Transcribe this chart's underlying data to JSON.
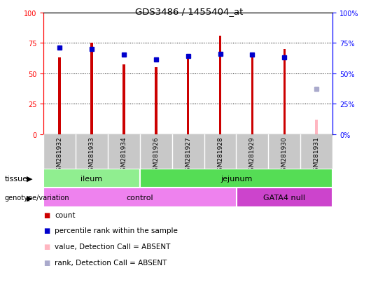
{
  "title": "GDS3486 / 1455404_at",
  "samples": [
    "GSM281932",
    "GSM281933",
    "GSM281934",
    "GSM281926",
    "GSM281927",
    "GSM281928",
    "GSM281929",
    "GSM281930",
    "GSM281931"
  ],
  "count_values": [
    63,
    75,
    57,
    55,
    63,
    81,
    63,
    70,
    12
  ],
  "percentile_values": [
    71,
    70,
    65,
    61,
    64,
    66,
    65,
    63,
    37
  ],
  "absent_mask": [
    false,
    false,
    false,
    false,
    false,
    false,
    false,
    false,
    true
  ],
  "tissue_groups": [
    {
      "label": "ileum",
      "start": 0,
      "end": 3,
      "color": "#90EE90"
    },
    {
      "label": "jejunum",
      "start": 3,
      "end": 9,
      "color": "#55DD55"
    }
  ],
  "genotype_groups": [
    {
      "label": "control",
      "start": 0,
      "end": 6,
      "color": "#EE82EE"
    },
    {
      "label": "GATA4 null",
      "start": 6,
      "end": 9,
      "color": "#CC44CC"
    }
  ],
  "bar_color": "#CC0000",
  "absent_bar_color": "#FFB6C1",
  "dot_color": "#0000CC",
  "absent_dot_color": "#AAAACC",
  "ylim": [
    0,
    100
  ],
  "grid_lines": [
    25,
    50,
    75
  ],
  "left_yticks": [
    0,
    25,
    50,
    75,
    100
  ],
  "left_yticklabels": [
    "0",
    "25",
    "50",
    "75",
    "100"
  ],
  "right_yticks": [
    0,
    25,
    50,
    75,
    100
  ],
  "right_yticklabels": [
    "0%",
    "25%",
    "50%",
    "75%",
    "100%"
  ],
  "legend_items": [
    {
      "color": "#CC0000",
      "label": "count"
    },
    {
      "color": "#0000CC",
      "label": "percentile rank within the sample"
    },
    {
      "color": "#FFB6C1",
      "label": "value, Detection Call = ABSENT"
    },
    {
      "color": "#AAAACC",
      "label": "rank, Detection Call = ABSENT"
    }
  ],
  "xlabels_bg_color": "#C8C8C8",
  "tissue_arrow_color": "#555555",
  "bar_width": 0.08
}
